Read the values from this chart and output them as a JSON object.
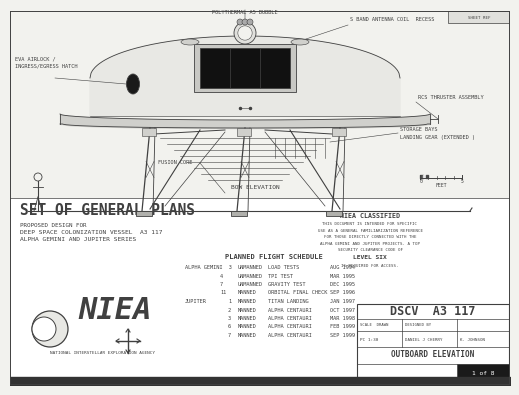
{
  "bg_color": "#f2f2ee",
  "line_color": "#404040",
  "title": "SET OF GENERAL PLANS",
  "subtitle1": "PROPOSED DESIGN FOR",
  "subtitle2": "DEEP SPACE COLONIZATION VESSEL  A3 117",
  "subtitle3": "ALPHA GEMINI AND JUPITER SERIES",
  "bow_label": "BOW ELEVATION",
  "schedule_title": "PLANNED FLIGHT SCHEDULE",
  "schedule_rows": [
    [
      "ALPHA GEMINI  3",
      "UNMANNED",
      "LOAD TESTS",
      "AUG 1994"
    ],
    [
      "4",
      "UNMANNED",
      "TPI TEST",
      "MAR 1995"
    ],
    [
      "7",
      "UNMANNED",
      "GRAVITY TEST",
      "DEC 1995"
    ],
    [
      "11",
      "MANNED",
      "ORBITAL FINAL CHECK",
      "SEP 1996"
    ],
    [
      "JUPITER         1",
      "MANNED",
      "TITAN LANDING",
      "JAN 1997"
    ],
    [
      "2",
      "MANNED",
      "ALPHA CENTAURI",
      "OCT 1997"
    ],
    [
      "3",
      "MANNED",
      "ALPHA CENTAURI",
      "MAR 1998"
    ],
    [
      "6",
      "MANNED",
      "ALPHA CENTAURI",
      "FEB 1999"
    ],
    [
      "7",
      "MANNED",
      "ALPHA CENTAURI",
      "SEP 1999"
    ]
  ],
  "niea_classified": "NIEA CLASSIFIED",
  "niea_lines": [
    "THIS DOCUMENT IS INTENDED FOR SPECIFIC",
    "USE AS A GENERAL FAMILIARIZATION REFERENCE",
    "FOR THOSE DIRECTLY CONNECTED WITH THE",
    "ALPHA GEMINI AND JUPITER PROJECTS. A TOP",
    "SECURITY CLEARANCE CODE OF"
  ],
  "niea_level": "LEVEL SIX",
  "niea_req": "IS REQUIRED FOR ACCESS.",
  "dscv_title": "DSCV  A3 117",
  "outboard": "OUTBOARD ELEVATION",
  "scale_label": "FEET",
  "label_poly": "POLYTHERMAL A5 BUBBLE",
  "label_antenna": "S BAND ANTENNA COIL  RECESS",
  "label_eva": "EVA AIRLOCK /\nINGRESS/EGRESS HATCH",
  "label_rcs": "RCS THRUSTER ASSEMBLY",
  "label_storage": "STORAGE BAYS",
  "label_landing": "LANDING GEAR (EXTENDED )",
  "label_fusion": "FUSION CORE",
  "niea_logo_text": "NATIONAL INTERSTELLAR EXPLORATION AGENCY",
  "top_ref": "SHEET REF",
  "scale_drawn": "SCALE  DRAWN",
  "designed_by": "DESIGNED BY",
  "scale_val": "PC 1:30",
  "drawn_val": "DANIEL J CHERRY",
  "check_val": "K. JOHNSON",
  "sheet_num": "1 of 8"
}
